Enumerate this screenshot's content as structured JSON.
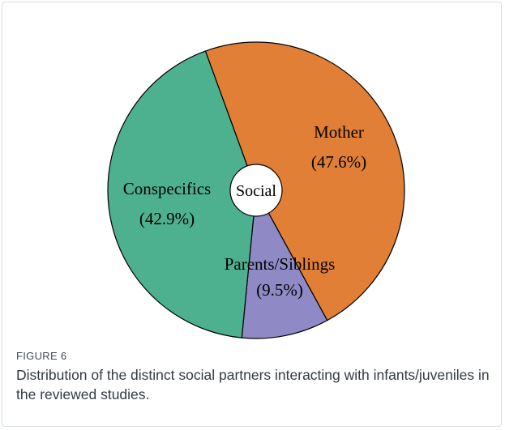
{
  "figure": {
    "label": "FIGURE 6",
    "caption": "Distribution of the distinct social partners interacting with infants/juveniles in the reviewed studies."
  },
  "chart_data": {
    "type": "pie",
    "center_label": "Social",
    "slices": [
      {
        "name": "Mother",
        "value": 47.6,
        "pct_label": "(47.6%)",
        "color": "#E07F35"
      },
      {
        "name": "Parents/Siblings",
        "value": 9.5,
        "pct_label": "(9.5%)",
        "color": "#8F89C6"
      },
      {
        "name": "Conspecifics",
        "value": 42.9,
        "pct_label": "(42.9%)",
        "color": "#4DB190"
      }
    ]
  }
}
